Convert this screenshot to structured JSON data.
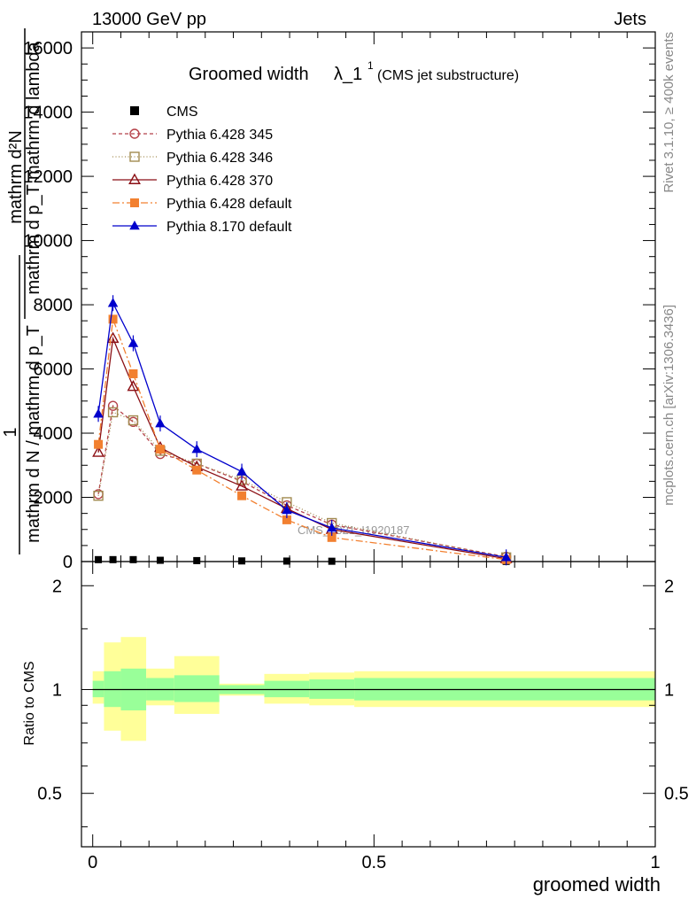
{
  "header": {
    "left": "13000 GeV pp",
    "right": "Jets"
  },
  "side_labels": {
    "rivet": "Rivet 3.1.10, ≥ 400k events",
    "mcplots": "mcplots.cern.ch [arXiv:1306.3436]"
  },
  "watermark": "CMS_2021_I1920187",
  "chart_data": [
    {
      "type": "line",
      "title": "Groomed width",
      "title_symbol": "λ_1",
      "title_symbol_sup": "1",
      "subtitle": "(CMS jet substructure)",
      "ylabel_parts": [
        "mathrm d²N",
        "mathrm d p_T mathrm d lambda",
        "1",
        "mathrm d N / mathrm d p_T"
      ],
      "xlim": [
        -0.02,
        1.0
      ],
      "ylim": [
        0,
        16500
      ],
      "yticks": [
        0,
        2000,
        4000,
        6000,
        8000,
        10000,
        12000,
        14000,
        16000
      ],
      "ytick_labels": [
        "0",
        "2000",
        "4000",
        "6000",
        "8000",
        "10000",
        "12000",
        "14000",
        "16000"
      ],
      "legend_position": "top-left",
      "x": [
        0.01,
        0.036,
        0.072,
        0.12,
        0.185,
        0.265,
        0.345,
        0.425,
        0.735
      ],
      "series": [
        {
          "name": "CMS",
          "color": "#000000",
          "marker": "square-filled",
          "dash": "none",
          "values": [
            60,
            60,
            60,
            40,
            30,
            20,
            15,
            10,
            5
          ]
        },
        {
          "name": "Pythia 6.428 345",
          "color": "#b5424a",
          "marker": "circle-open",
          "dash": "4,3",
          "values": [
            2100,
            4850,
            4350,
            3350,
            3050,
            2500,
            1750,
            1150,
            150
          ]
        },
        {
          "name": "Pythia 6.428 346",
          "color": "#a28b51",
          "marker": "square-open",
          "dash": "1,2.5",
          "values": [
            2050,
            4650,
            4400,
            3450,
            3050,
            2550,
            1850,
            1200,
            130
          ]
        },
        {
          "name": "Pythia 6.428 370",
          "color": "#8b0f14",
          "marker": "triangle-open",
          "dash": "none",
          "values": [
            3400,
            6950,
            5450,
            3550,
            2950,
            2350,
            1650,
            1000,
            90
          ]
        },
        {
          "name": "Pythia 6.428 default",
          "color": "#f28030",
          "marker": "square-filled",
          "dash": "8,3,2,3",
          "values": [
            3650,
            7550,
            5850,
            3500,
            2850,
            2050,
            1300,
            750,
            60
          ]
        },
        {
          "name": "Pythia 8.170 default",
          "color": "#0000cc",
          "marker": "triangle-filled",
          "dash": "none",
          "values": [
            4600,
            8050,
            6800,
            4300,
            3500,
            2800,
            1600,
            1050,
            130
          ]
        }
      ]
    },
    {
      "type": "area",
      "ylabel": "Ratio to CMS",
      "xlabel": "groomed width",
      "xlim": [
        -0.02,
        1.0
      ],
      "ylim": [
        0.35,
        2.35
      ],
      "yscale": "log",
      "yticks": [
        0.5,
        1,
        2
      ],
      "ytick_labels": [
        "0.5",
        "1",
        "2"
      ],
      "xticks": [
        0,
        0.5,
        1
      ],
      "xtick_labels": [
        "0",
        "0.5",
        "1"
      ],
      "bins": [
        [
          0.0,
          0.02
        ],
        [
          0.02,
          0.05
        ],
        [
          0.05,
          0.095
        ],
        [
          0.095,
          0.145
        ],
        [
          0.145,
          0.225
        ],
        [
          0.225,
          0.305
        ],
        [
          0.305,
          0.385
        ],
        [
          0.385,
          0.465
        ],
        [
          0.465,
          1.0
        ]
      ],
      "inner_band": [
        [
          0.95,
          1.06
        ],
        [
          0.89,
          1.13
        ],
        [
          0.87,
          1.15
        ],
        [
          0.93,
          1.08
        ],
        [
          0.92,
          1.1
        ],
        [
          0.97,
          1.03
        ],
        [
          0.95,
          1.06
        ],
        [
          0.94,
          1.07
        ],
        [
          0.93,
          1.08
        ]
      ],
      "outer_band": [
        [
          0.91,
          1.13
        ],
        [
          0.76,
          1.37
        ],
        [
          0.71,
          1.42
        ],
        [
          0.9,
          1.15
        ],
        [
          0.85,
          1.25
        ],
        [
          0.96,
          1.04
        ],
        [
          0.91,
          1.11
        ],
        [
          0.9,
          1.12
        ],
        [
          0.89,
          1.13
        ]
      ],
      "inner_color": "#99ff99",
      "outer_color": "#ffff99",
      "reference_line": 1
    }
  ]
}
